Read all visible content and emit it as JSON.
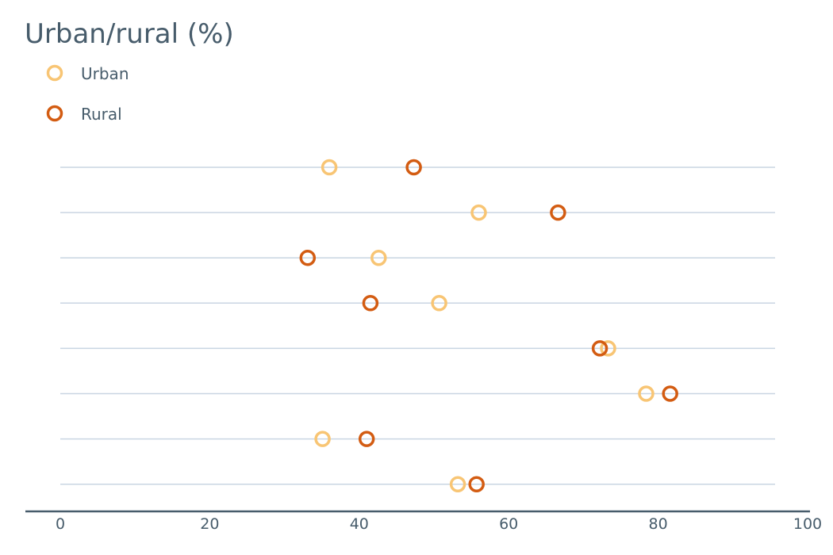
{
  "chart_data": {
    "type": "scatter",
    "title": "Urban/rural (%)",
    "xlabel": "",
    "ylabel": "",
    "xlim": [
      0,
      100
    ],
    "x_ticks": [
      "0",
      "20",
      "40",
      "60",
      "80",
      "100"
    ],
    "x_tick_values": [
      0,
      20,
      40,
      60,
      80,
      100
    ],
    "grid": true,
    "legend_position": "top-left",
    "rows": 8,
    "series": [
      {
        "name": "Urban",
        "color": "#f8c574",
        "values": [
          36.0,
          56.0,
          42.6,
          50.7,
          73.3,
          78.4,
          35.1,
          53.2
        ]
      },
      {
        "name": "Rural",
        "color": "#d35c12",
        "values": [
          47.3,
          66.6,
          33.1,
          41.5,
          72.2,
          81.6,
          41.0,
          55.7
        ]
      }
    ],
    "colors": {
      "text": "#475c6b",
      "grid": "#c9d5e2",
      "axis": "#475c6b"
    }
  }
}
